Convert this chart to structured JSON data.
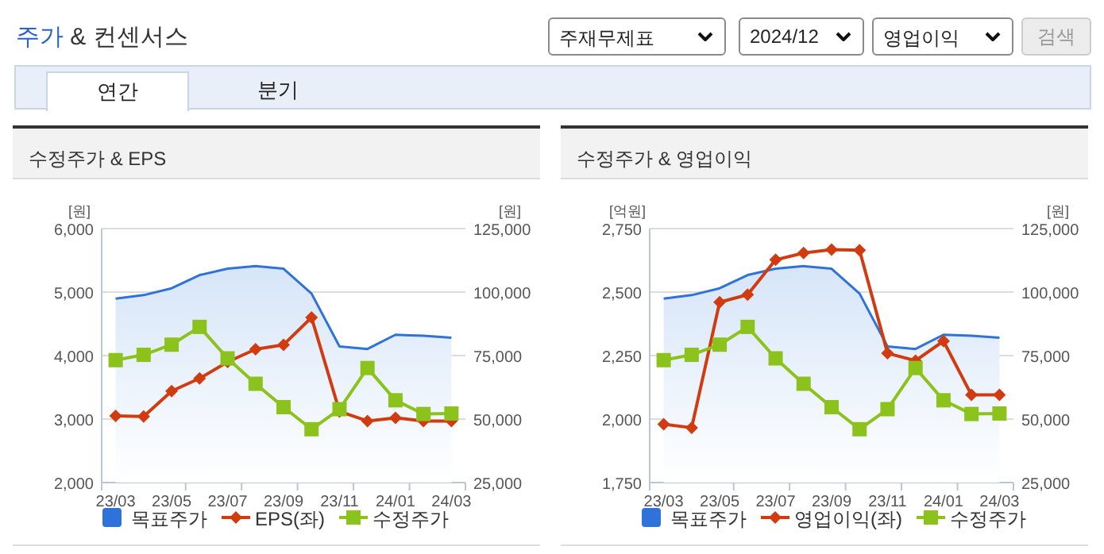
{
  "chart_data": [
    {
      "type": "other",
      "title": "주가 & 컨센서스",
      "annotations": [
        "주재무제표",
        "2024/12",
        "영업이익",
        "검색",
        "연간",
        "분기"
      ]
    },
    {
      "type": "line",
      "title": "수정주가 & EPS",
      "ylabel": "[원]",
      "y2label": "[원]",
      "categories": [
        "23/03",
        null,
        "23/05",
        null,
        "23/07",
        null,
        "23/09",
        null,
        "23/11",
        null,
        "24/01",
        null,
        "24/03"
      ],
      "series": [
        {
          "name": "목표주가",
          "type": "area",
          "axis": "y2",
          "color": "#2f72d9",
          "values": [
            97400,
            98800,
            101500,
            106700,
            109200,
            110200,
            109200,
            99400,
            78600,
            77600,
            83200,
            82800,
            82000
          ]
        },
        {
          "name": "EPS(좌)",
          "type": "line",
          "marker": "diamond",
          "color": "#d13b10",
          "values": [
            3050,
            3040,
            3440,
            3640,
            3900,
            4100,
            4170,
            4600,
            3120,
            2970,
            3020,
            2970,
            2970
          ]
        },
        {
          "name": "수정주가",
          "type": "line",
          "axis": "y2",
          "marker": "square",
          "color": "#8cc21c",
          "values": [
            73200,
            75300,
            79300,
            86300,
            73900,
            63900,
            54700,
            46000,
            53900,
            70100,
            57400,
            52000,
            52200
          ]
        }
      ],
      "ylim": [
        2000,
        6000
      ],
      "yticks": [
        {
          "value": 2000,
          "label": "2,000"
        },
        {
          "value": 3000,
          "label": "3,000"
        },
        {
          "value": 4000,
          "label": "4,000"
        },
        {
          "value": 5000,
          "label": "5,000"
        },
        {
          "value": 6000,
          "label": "6,000"
        }
      ],
      "y2lim": [
        25000,
        125000
      ],
      "y2ticks": [
        {
          "value": 25000,
          "label": "25,000"
        },
        {
          "value": 50000,
          "label": "50,000"
        },
        {
          "value": 75000,
          "label": "75,000"
        },
        {
          "value": 100000,
          "label": "100,000"
        },
        {
          "value": 125000,
          "label": "125,000"
        }
      ],
      "grid": "y",
      "legend": "bottom"
    },
    {
      "type": "line",
      "title": "수정주가 & 영업이익",
      "ylabel": "[억원]",
      "y2label": "[원]",
      "categories": [
        "23/03",
        null,
        "23/05",
        null,
        "23/07",
        null,
        "23/09",
        null,
        "23/11",
        null,
        "24/01",
        null,
        "24/03"
      ],
      "series": [
        {
          "name": "목표주가",
          "type": "area",
          "axis": "y2",
          "color": "#2f72d9",
          "values": [
            97400,
            98800,
            101500,
            106700,
            109200,
            110200,
            109200,
            99400,
            78600,
            77600,
            83200,
            82800,
            82000
          ]
        },
        {
          "name": "영업이익(좌)",
          "type": "line",
          "marker": "diamond",
          "color": "#d13b10",
          "values": [
            1980,
            1966,
            2460,
            2490,
            2627,
            2654,
            2667,
            2665,
            2259,
            2230,
            2307,
            2095,
            2095
          ]
        },
        {
          "name": "수정주가",
          "type": "line",
          "axis": "y2",
          "marker": "square",
          "color": "#8cc21c",
          "values": [
            73200,
            75300,
            79300,
            86300,
            73900,
            63900,
            54700,
            46000,
            53900,
            70100,
            57400,
            52000,
            52200
          ]
        }
      ],
      "ylim": [
        1750,
        2750
      ],
      "yticks": [
        {
          "value": 1750,
          "label": "1,750"
        },
        {
          "value": 2000,
          "label": "2,000"
        },
        {
          "value": 2250,
          "label": "2,250"
        },
        {
          "value": 2500,
          "label": "2,500"
        },
        {
          "value": 2750,
          "label": "2,750"
        }
      ],
      "y2lim": [
        25000,
        125000
      ],
      "y2ticks": [
        {
          "value": 25000,
          "label": "25,000"
        },
        {
          "value": 50000,
          "label": "50,000"
        },
        {
          "value": 75000,
          "label": "75,000"
        },
        {
          "value": 100000,
          "label": "100,000"
        },
        {
          "value": 125000,
          "label": "125,000"
        }
      ],
      "grid": "y",
      "legend": "bottom"
    }
  ]
}
